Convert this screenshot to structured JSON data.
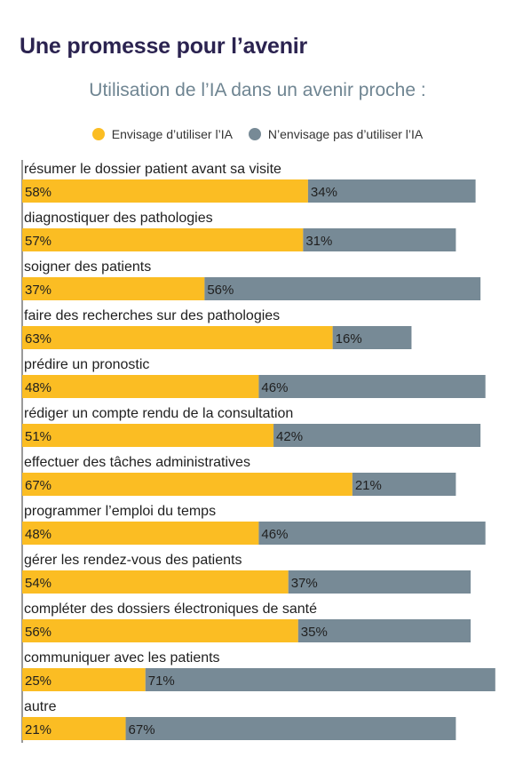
{
  "header": {
    "title": "Une promesse pour l’avenir"
  },
  "chart_data": {
    "type": "bar",
    "orientation": "horizontal",
    "stacked": true,
    "title": "Utilisation de l’IA dans un avenir proche :",
    "xlabel": "",
    "ylabel": "",
    "legend_position": "top",
    "grid": false,
    "xlim": [
      0,
      100
    ],
    "categories": [
      "résumer le dossier patient avant sa visite",
      "diagnostiquer des pathologies",
      "soigner des patients",
      "faire des recherches sur des pathologies",
      "prédire un pronostic",
      "rédiger un compte rendu de la consultation",
      "effectuer des tâches administratives",
      "programmer l’emploi du temps",
      "gérer les rendez-vous des patients",
      "compléter des dossiers électroniques de santé",
      "communiquer avec les patients",
      "autre"
    ],
    "series": [
      {
        "name": "Envisage d’utiliser l’IA",
        "color": "#fbbd23",
        "values": [
          58,
          57,
          37,
          63,
          48,
          51,
          67,
          48,
          54,
          56,
          25,
          21
        ],
        "labels": [
          "58%",
          "57%",
          "37%",
          "63%",
          "48%",
          "51%",
          "67%",
          "48%",
          "54%",
          "56%",
          "25%",
          "21%"
        ]
      },
      {
        "name": "N’envisage pas d’utiliser l’IA",
        "color": "#778a96",
        "values": [
          34,
          31,
          56,
          16,
          46,
          42,
          21,
          46,
          37,
          35,
          71,
          67
        ],
        "labels": [
          "34%",
          "31%",
          "56%",
          "16%",
          "46%",
          "42%",
          "21%",
          "46%",
          "37%",
          "35%",
          "71%",
          "67%"
        ]
      }
    ]
  }
}
